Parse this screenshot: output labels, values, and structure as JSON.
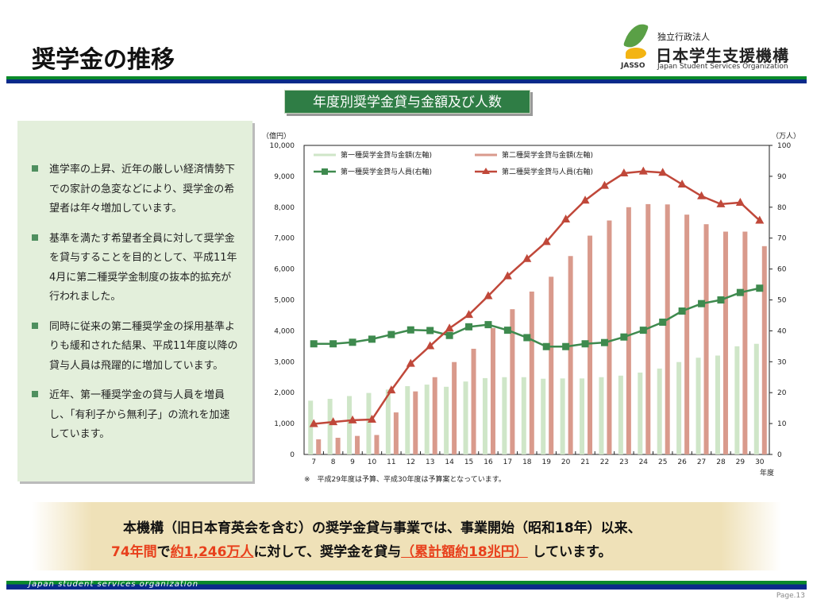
{
  "header": {
    "title": "奨学金の推移",
    "logo": {
      "line1": "独立行政法人",
      "line2": "日本学生支援機構",
      "line3": "Japan Student Services Organization",
      "mark": "JASSO"
    }
  },
  "chart_title": "年度別奨学金貸与金額及び人数",
  "panel": {
    "items": [
      "進学率の上昇、近年の厳しい経済情勢下での家計の急変などにより、奨学金の希望者は年々増加しています。",
      "基準を満たす希望者全員に対して奨学金を貸与することを目的として、平成11年4月に第二種奨学金制度の抜本的拡充が行われました。",
      "同時に従来の第二種奨学金の採用基準よりも緩和された結果、平成11年度以降の貸与人員は飛躍的に増加しています。",
      "近年、第一種奨学金の貸与人員を増員し、「有利子から無利子」の流れを加速しています。"
    ]
  },
  "chart_data": {
    "type": "bar+line",
    "categories": [
      "7",
      "8",
      "9",
      "10",
      "11",
      "12",
      "13",
      "14",
      "15",
      "16",
      "17",
      "18",
      "19",
      "20",
      "21",
      "22",
      "23",
      "24",
      "25",
      "26",
      "27",
      "28",
      "29",
      "30"
    ],
    "xlabel": "年度",
    "ylabel_left": "（億円）",
    "ylabel_right": "（万人）",
    "ylim_left": [
      0,
      10000
    ],
    "ylim_right": [
      0,
      100
    ],
    "yticks_left": [
      "0",
      "1,000",
      "2,000",
      "3,000",
      "4,000",
      "5,000",
      "6,000",
      "7,000",
      "8,000",
      "9,000",
      "10,000"
    ],
    "yticks_right": [
      "0",
      "10",
      "20",
      "30",
      "40",
      "50",
      "60",
      "70",
      "80",
      "90",
      "100"
    ],
    "legend_position": "top-left",
    "note": "※　平成29年度は予算、平成30年度は予算案となっています。",
    "series": [
      {
        "name": "第一種奨学金貸与金額(左軸)",
        "kind": "bar",
        "axis": "left",
        "color": "#cfe6c8",
        "values": [
          1740,
          1800,
          1890,
          1990,
          2100,
          2210,
          2260,
          2190,
          2360,
          2470,
          2500,
          2500,
          2450,
          2460,
          2460,
          2500,
          2550,
          2650,
          2780,
          2990,
          3130,
          3200,
          3500,
          3580
        ]
      },
      {
        "name": "第二種奨学金貸与金額(左軸)",
        "kind": "bar",
        "axis": "left",
        "color": "#d99a8c",
        "values": [
          490,
          540,
          600,
          630,
          1360,
          2040,
          2500,
          2990,
          3420,
          4090,
          4700,
          5270,
          5750,
          6420,
          7080,
          7570,
          8000,
          8100,
          8090,
          7760,
          7450,
          7210,
          7210,
          6740
        ]
      },
      {
        "name": "第一種奨学金貸与人員(右軸)",
        "kind": "line",
        "marker": "square",
        "axis": "right",
        "color": "#3e8a4e",
        "values": [
          35.8,
          35.8,
          36.3,
          37.3,
          38.8,
          40.3,
          40.1,
          38.5,
          41.3,
          42.0,
          40.2,
          37.8,
          34.9,
          34.9,
          35.8,
          36.2,
          38.0,
          40.2,
          42.8,
          46.4,
          48.8,
          50.0,
          52.4,
          53.8
        ]
      },
      {
        "name": "第二種奨学金貸与人員(右軸)",
        "kind": "line",
        "marker": "triangle",
        "axis": "right",
        "color": "#c0483a",
        "values": [
          9.9,
          10.5,
          11.1,
          11.3,
          20.8,
          29.4,
          35.1,
          40.8,
          45.2,
          51.3,
          57.7,
          63.3,
          68.8,
          76.1,
          82.2,
          87.0,
          91.0,
          91.6,
          91.2,
          87.4,
          83.6,
          81.0,
          81.5,
          75.7
        ]
      }
    ]
  },
  "banner": {
    "line1": "本機構（旧日本育英会を含む）の奨学金貸与事業では、事業開始（昭和18年）以来、",
    "years": "74年間",
    "de": "で",
    "people": "約1,246万人",
    "mid": "に対して、奨学金を貸与",
    "total": "（累計額約18兆円）",
    "end": " しています。"
  },
  "footer": {
    "org": "Japan student services organization",
    "page": "Page.13"
  },
  "colors": {
    "accent_green": "#2f7d45",
    "bar_blue": "#0a2a8a",
    "bar_green": "#0a8a2a",
    "highlight_red": "#e8401c"
  }
}
